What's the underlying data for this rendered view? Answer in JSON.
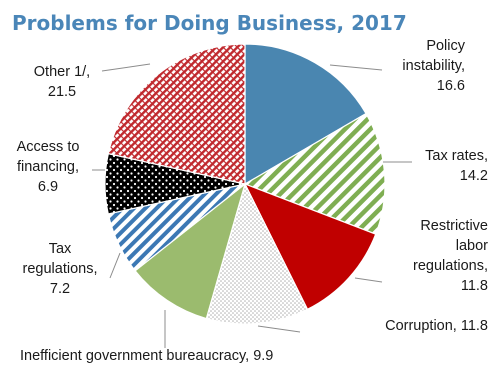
{
  "chart_data": {
    "type": "pie",
    "title": "Problems for Doing Business, 2017",
    "slices": [
      {
        "label": "Policy instability",
        "value": 16.6,
        "lines": [
          "Policy",
          "instability,",
          "16.6"
        ],
        "color": "#4a86b0",
        "pattern": "solid"
      },
      {
        "label": "Tax rates",
        "value": 14.2,
        "lines": [
          "Tax rates,",
          "14.2"
        ],
        "color": "#7fae52",
        "pattern": "wide-diagonal"
      },
      {
        "label": "Restrictive labor regulations",
        "value": 11.8,
        "lines": [
          "Restrictive",
          "labor",
          "regulations,",
          "11.8"
        ],
        "color": "#c00000",
        "pattern": "solid"
      },
      {
        "label": "Corruption",
        "value": 11.8,
        "lines": [
          "Corruption, 11.8"
        ],
        "color": "#bfbfbf",
        "pattern": "dots"
      },
      {
        "label": "Inefficient government bureaucracy",
        "value": 9.9,
        "lines": [
          "Inefficient government bureaucracy, 9.9"
        ],
        "color": "#9bbb6e",
        "pattern": "solid"
      },
      {
        "label": "Tax regulations",
        "value": 7.2,
        "lines": [
          "Tax",
          "regulations,",
          "7.2"
        ],
        "color": "#3c78b4",
        "pattern": "diagonal-stripes"
      },
      {
        "label": "Access to financing",
        "value": 6.9,
        "lines": [
          "Access to",
          "financing,",
          "6.9"
        ],
        "color": "#000000",
        "pattern": "black-dots"
      },
      {
        "label": "Other 1/",
        "value": 21.5,
        "lines": [
          "Other 1/,",
          "21.5"
        ],
        "color": "#c0282d",
        "pattern": "crosshatch"
      }
    ],
    "start_angle_deg": 0,
    "direction": "clockwise",
    "legend": "none"
  }
}
